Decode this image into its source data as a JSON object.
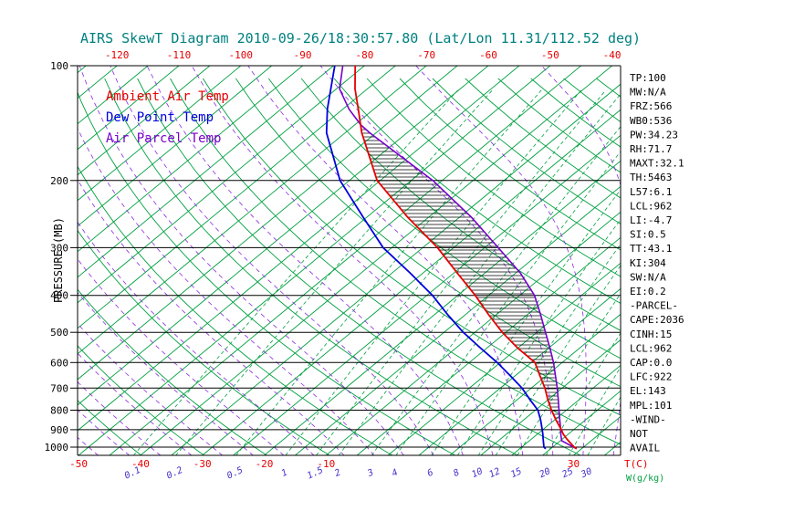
{
  "title": {
    "text": "AIRS SkewT Diagram 2010-09-26/18:30:57.80 (Lat/Lon 11.31/112.52 deg)"
  },
  "legend": {
    "items": [
      {
        "label": "Ambient Air Temp",
        "color": "#e60000"
      },
      {
        "label": "Dew Point Temp",
        "color": "#0000dd"
      },
      {
        "label": "Air Parcel Temp",
        "color": "#7700cc"
      }
    ]
  },
  "axes": {
    "pressure_label": "PRESSURE (MB)",
    "pressure_ticks": [
      100,
      200,
      300,
      400,
      500,
      600,
      700,
      800,
      900,
      1000
    ],
    "top_temp_ticks": [
      -120,
      -110,
      -100,
      -90,
      -80,
      -70,
      -60,
      -50,
      -40
    ],
    "bottom_temp_ticks": [
      -50,
      -40,
      -30,
      -20,
      -10,
      30
    ],
    "temp_unit_label": "T(C)",
    "mixing_unit_label": "W(g/kg)"
  },
  "stats_panel": {
    "lines": [
      "TP:100",
      "MW:N/A",
      "FRZ:566",
      "WB0:536",
      "PW:34.23",
      "RH:71.7",
      "MAXT:32.1",
      "TH:5463",
      "L57:6.1",
      "LCL:962",
      "LI:-4.7",
      "SI:0.5",
      "TT:43.1",
      "KI:304",
      "SW:N/A",
      "EI:0.2",
      "-PARCEL-",
      "CAPE:2036",
      "CINH:15",
      "LCL:962",
      "CAP:0.0",
      "LFC:922",
      "EL:143",
      "MPL:101",
      "-WIND-",
      "NOT",
      "AVAIL"
    ]
  },
  "colors": {
    "background": "#ffffff",
    "title_teal": "#008080",
    "grid_green": "#00a040",
    "moist_adiabat_purple": "#8a2be2",
    "mixing_label_blue": "#4433cc",
    "ambient_red": "#e60000",
    "dewpoint_blue": "#0000dd",
    "parcel_purple": "#7700cc",
    "axis_black": "#000000"
  },
  "chart_data": {
    "type": "line",
    "title": "AIRS SkewT Diagram 2010-09-26/18:30:57.80 (Lat/Lon 11.31/112.52 deg)",
    "x_axis": {
      "label": "T(C)",
      "top_tick_labels": [
        -120,
        -110,
        -100,
        -90,
        -80,
        -70,
        -60,
        -50,
        -40
      ],
      "bottom_tick_labels": [
        -50,
        -40,
        -30,
        -20,
        -10,
        30
      ]
    },
    "y_axis": {
      "label": "PRESSURE (MB)",
      "scale": "log",
      "ticks": [
        100,
        200,
        300,
        400,
        500,
        600,
        700,
        800,
        900,
        1000
      ],
      "range": [
        100,
        1050
      ]
    },
    "grid": {
      "isotherm_step_c": 5,
      "dry_adiabat_step_k": 10,
      "moist_adiabat_step_c": 5
    },
    "mixing_ratio_lines_g_per_kg": [
      0.1,
      0.2,
      0.5,
      1,
      1.5,
      2,
      3,
      4,
      6,
      8,
      10,
      12,
      15,
      20,
      25,
      30
    ],
    "series": [
      {
        "name": "Ambient Air Temp",
        "color": "#e60000",
        "points_p_mb_T_c": [
          [
            1010,
            29.2
          ],
          [
            1000,
            28.5
          ],
          [
            962,
            26.3
          ],
          [
            950,
            25.6
          ],
          [
            925,
            24.2
          ],
          [
            900,
            23.0
          ],
          [
            850,
            20.3
          ],
          [
            800,
            17.6
          ],
          [
            750,
            14.9
          ],
          [
            700,
            12.2
          ],
          [
            650,
            9.0
          ],
          [
            600,
            5.6
          ],
          [
            550,
            0.0
          ],
          [
            500,
            -5.6
          ],
          [
            450,
            -11.2
          ],
          [
            400,
            -17.2
          ],
          [
            350,
            -24.4
          ],
          [
            300,
            -32.6
          ],
          [
            250,
            -43.3
          ],
          [
            200,
            -55.5
          ],
          [
            150,
            -67.3
          ],
          [
            130,
            -72.5
          ],
          [
            115,
            -77.0
          ],
          [
            100,
            -81.5
          ]
        ]
      },
      {
        "name": "Dew Point Temp",
        "color": "#0000dd",
        "points_p_mb_T_c": [
          [
            1010,
            24.2
          ],
          [
            1000,
            23.6
          ],
          [
            950,
            21.8
          ],
          [
            925,
            20.9
          ],
          [
            900,
            19.9
          ],
          [
            850,
            17.8
          ],
          [
            800,
            15.4
          ],
          [
            750,
            12.0
          ],
          [
            700,
            8.5
          ],
          [
            650,
            4.2
          ],
          [
            600,
            -0.5
          ],
          [
            550,
            -6.0
          ],
          [
            500,
            -11.9
          ],
          [
            450,
            -17.8
          ],
          [
            400,
            -24.1
          ],
          [
            350,
            -32.0
          ],
          [
            300,
            -41.4
          ],
          [
            250,
            -50.5
          ],
          [
            200,
            -61.5
          ],
          [
            150,
            -73.0
          ],
          [
            130,
            -77.5
          ],
          [
            100,
            -84.8
          ]
        ]
      },
      {
        "name": "Air Parcel Temp",
        "color": "#7700cc",
        "points_p_mb_T_c": [
          [
            1010,
            29.2
          ],
          [
            962,
            25.2
          ],
          [
            925,
            23.8
          ],
          [
            900,
            22.9
          ],
          [
            850,
            20.9
          ],
          [
            800,
            18.8
          ],
          [
            750,
            16.6
          ],
          [
            700,
            14.2
          ],
          [
            650,
            11.5
          ],
          [
            600,
            8.6
          ],
          [
            550,
            5.2
          ],
          [
            500,
            1.4
          ],
          [
            450,
            -2.8
          ],
          [
            400,
            -7.6
          ],
          [
            350,
            -14.2
          ],
          [
            300,
            -22.8
          ],
          [
            250,
            -33.0
          ],
          [
            200,
            -46.5
          ],
          [
            150,
            -66.0
          ],
          [
            143,
            -69.0
          ],
          [
            130,
            -74.0
          ],
          [
            115,
            -79.5
          ],
          [
            100,
            -83.5
          ]
        ]
      }
    ],
    "cape_hatch_between": [
      "Ambient Air Temp",
      "Air Parcel Temp"
    ]
  }
}
